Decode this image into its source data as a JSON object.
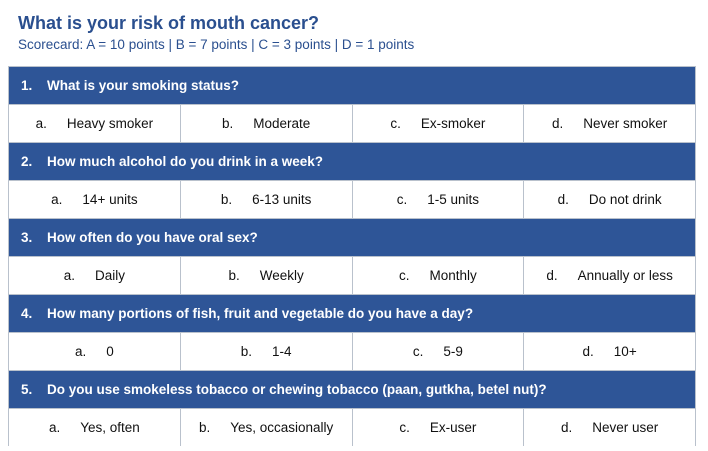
{
  "title": "What is your risk of mouth cancer?",
  "scorecard": "Scorecard: A = 10 points | B = 7 points | C = 3 points | D = 1 points",
  "questions": [
    {
      "number": "1.",
      "text": "What is your smoking status?",
      "options": [
        {
          "letter": "a.",
          "text": "Heavy smoker"
        },
        {
          "letter": "b.",
          "text": "Moderate"
        },
        {
          "letter": "c.",
          "text": "Ex-smoker"
        },
        {
          "letter": "d.",
          "text": "Never smoker"
        }
      ]
    },
    {
      "number": "2.",
      "text": "How much alcohol do you drink in a week?",
      "options": [
        {
          "letter": "a.",
          "text": "14+ units"
        },
        {
          "letter": "b.",
          "text": "6-13 units"
        },
        {
          "letter": "c.",
          "text": "1-5 units"
        },
        {
          "letter": "d.",
          "text": "Do not drink"
        }
      ]
    },
    {
      "number": "3.",
      "text": "How often do you have oral sex?",
      "options": [
        {
          "letter": "a.",
          "text": "Daily"
        },
        {
          "letter": "b.",
          "text": "Weekly"
        },
        {
          "letter": "c.",
          "text": "Monthly"
        },
        {
          "letter": "d.",
          "text": "Annually or less"
        }
      ]
    },
    {
      "number": "4.",
      "text": "How many portions of fish, fruit and vegetable do you have a day?",
      "options": [
        {
          "letter": "a.",
          "text": "0"
        },
        {
          "letter": "b.",
          "text": "1-4"
        },
        {
          "letter": "c.",
          "text": "5-9"
        },
        {
          "letter": "d.",
          "text": "10+"
        }
      ]
    },
    {
      "number": "5.",
      "text": "Do you use smokeless tobacco or chewing tobacco (paan, gutkha, betel nut)?",
      "options": [
        {
          "letter": "a.",
          "text": "Yes, often"
        },
        {
          "letter": "b.",
          "text": "Yes, occasionally"
        },
        {
          "letter": "c.",
          "text": "Ex-user"
        },
        {
          "letter": "d.",
          "text": "Never user"
        }
      ]
    }
  ],
  "colors": {
    "header_blue": "#2e5597",
    "title_blue": "#2a4f8f",
    "border": "#b9c1cc"
  }
}
